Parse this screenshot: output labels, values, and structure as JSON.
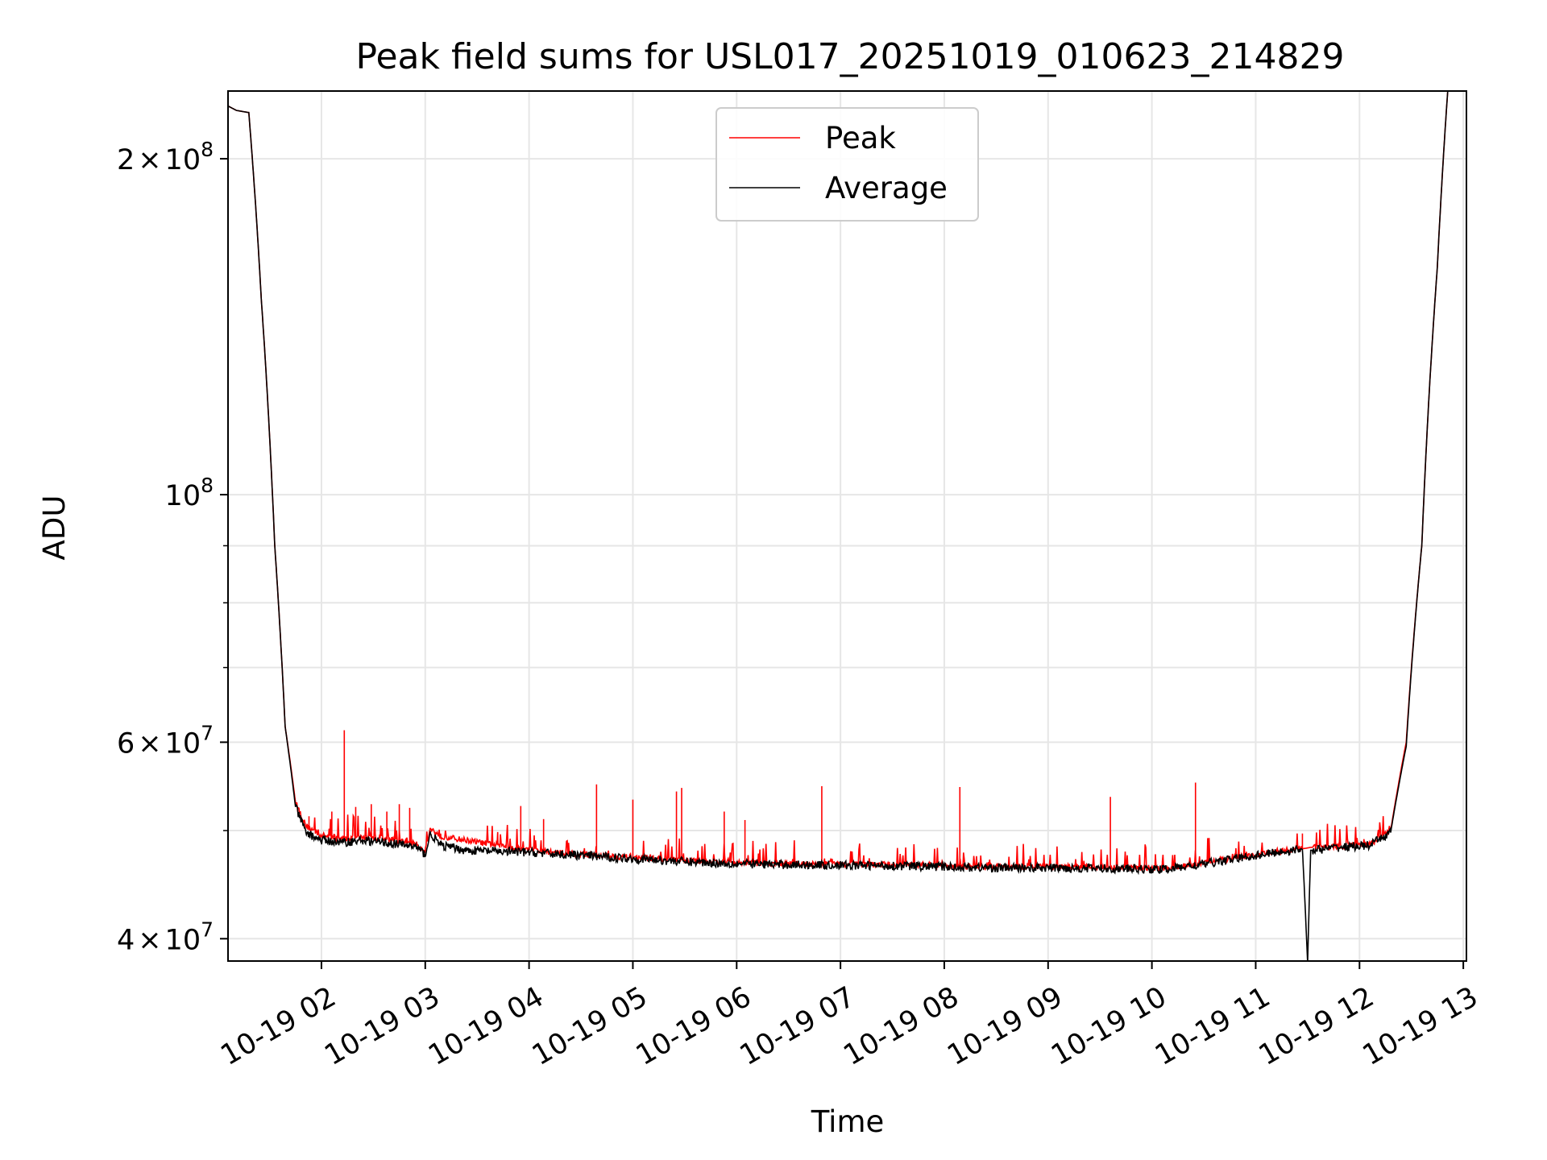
{
  "chart_data": {
    "type": "line",
    "title": "Peak field sums for USL017_20251019_010623_214829",
    "xlabel": "Time",
    "ylabel": "ADU",
    "yscale": "log",
    "xlim": [
      1.1,
      13.03
    ],
    "ylim": [
      38200000,
      230000000
    ],
    "grid": true,
    "legend_position": "upper-center",
    "x_unit": "hours since 10-19 00:00",
    "x_ticks": [
      {
        "value": 2,
        "label": "10-19 02"
      },
      {
        "value": 3,
        "label": "10-19 03"
      },
      {
        "value": 4,
        "label": "10-19 04"
      },
      {
        "value": 5,
        "label": "10-19 05"
      },
      {
        "value": 6,
        "label": "10-19 06"
      },
      {
        "value": 7,
        "label": "10-19 07"
      },
      {
        "value": 8,
        "label": "10-19 08"
      },
      {
        "value": 9,
        "label": "10-19 09"
      },
      {
        "value": 10,
        "label": "10-19 10"
      },
      {
        "value": 11,
        "label": "10-19 11"
      },
      {
        "value": 12,
        "label": "10-19 12"
      },
      {
        "value": 13,
        "label": "10-19 13"
      }
    ],
    "y_major_ticks": [
      {
        "value": 40000000,
        "mantissa": "4",
        "exponent": "7"
      },
      {
        "value": 60000000,
        "mantissa": "6",
        "exponent": "7"
      },
      {
        "value": 100000000,
        "mantissa": "",
        "exponent": "8"
      },
      {
        "value": 200000000,
        "mantissa": "2",
        "exponent": "8"
      }
    ],
    "y_minor_ticks": [
      50000000,
      70000000,
      80000000,
      90000000
    ],
    "times_sign": "×",
    "base": "10",
    "series": [
      {
        "name": "Peak",
        "color": "#ff0000",
        "baseline": [
          [
            1.1,
            223000000
          ],
          [
            1.18,
            221000000
          ],
          [
            1.3,
            220000000
          ],
          [
            1.42,
            150000000
          ],
          [
            1.55,
            90000000
          ],
          [
            1.65,
            62000000
          ],
          [
            1.75,
            53000000
          ],
          [
            1.85,
            50500000
          ],
          [
            2.0,
            49500000
          ],
          [
            2.2,
            49200000
          ],
          [
            2.4,
            49300000
          ],
          [
            2.6,
            49100000
          ],
          [
            2.9,
            48700000
          ],
          [
            3.0,
            48000000
          ],
          [
            3.05,
            50200000
          ],
          [
            3.15,
            49400000
          ],
          [
            3.4,
            49000000
          ],
          [
            3.7,
            48500000
          ],
          [
            4.0,
            48000000
          ],
          [
            4.5,
            47600000
          ],
          [
            5.0,
            47300000
          ],
          [
            5.5,
            47000000
          ],
          [
            6.0,
            46800000
          ],
          [
            6.5,
            46700000
          ],
          [
            7.0,
            46650000
          ],
          [
            7.5,
            46600000
          ],
          [
            8.0,
            46500000
          ],
          [
            8.5,
            46400000
          ],
          [
            9.0,
            46400000
          ],
          [
            9.5,
            46350000
          ],
          [
            9.8,
            46300000
          ],
          [
            10.1,
            46250000
          ],
          [
            10.4,
            46600000
          ],
          [
            10.7,
            47100000
          ],
          [
            11.0,
            47600000
          ],
          [
            11.2,
            47900000
          ],
          [
            11.48,
            48200000
          ],
          [
            11.53,
            48300000
          ],
          [
            11.8,
            48400000
          ],
          [
            12.1,
            48600000
          ],
          [
            12.3,
            50000000
          ],
          [
            12.45,
            60000000
          ],
          [
            12.6,
            90000000
          ],
          [
            12.75,
            160000000
          ],
          [
            12.85,
            230000000
          ],
          [
            13.03,
            230000000
          ]
        ],
        "spikes": [
          [
            1.88,
            51500000
          ],
          [
            2.1,
            52000000
          ],
          [
            2.22,
            61500000
          ],
          [
            2.33,
            52500000
          ],
          [
            2.48,
            52800000
          ],
          [
            2.63,
            52000000
          ],
          [
            2.75,
            52800000
          ],
          [
            2.85,
            52400000
          ],
          [
            3.92,
            52600000
          ],
          [
            4.14,
            51200000
          ],
          [
            4.65,
            55000000
          ],
          [
            5.0,
            53300000
          ],
          [
            5.42,
            54200000
          ],
          [
            5.47,
            54600000
          ],
          [
            5.88,
            52000000
          ],
          [
            6.08,
            51100000
          ],
          [
            6.82,
            54800000
          ],
          [
            8.15,
            54700000
          ],
          [
            9.6,
            53600000
          ],
          [
            10.42,
            55200000
          ],
          [
            11.45,
            49700000
          ]
        ]
      },
      {
        "name": "Average",
        "color": "#000000",
        "baseline": [
          [
            1.1,
            223000000
          ],
          [
            1.18,
            221000000
          ],
          [
            1.3,
            220000000
          ],
          [
            1.42,
            150000000
          ],
          [
            1.55,
            90000000
          ],
          [
            1.65,
            62000000
          ],
          [
            1.75,
            52500000
          ],
          [
            1.85,
            49800000
          ],
          [
            2.0,
            49000000
          ],
          [
            2.2,
            48800000
          ],
          [
            2.4,
            49000000
          ],
          [
            2.6,
            48800000
          ],
          [
            2.9,
            48400000
          ],
          [
            3.0,
            47600000
          ],
          [
            3.05,
            49700000
          ],
          [
            3.15,
            48500000
          ],
          [
            3.4,
            48000000
          ],
          [
            3.7,
            47900000
          ],
          [
            4.0,
            47800000
          ],
          [
            4.5,
            47500000
          ],
          [
            5.0,
            47200000
          ],
          [
            5.5,
            46900000
          ],
          [
            6.0,
            46700000
          ],
          [
            6.5,
            46600000
          ],
          [
            7.0,
            46550000
          ],
          [
            7.5,
            46500000
          ],
          [
            8.0,
            46400000
          ],
          [
            8.5,
            46300000
          ],
          [
            9.0,
            46300000
          ],
          [
            9.5,
            46250000
          ],
          [
            9.8,
            46200000
          ],
          [
            10.1,
            46150000
          ],
          [
            10.4,
            46500000
          ],
          [
            10.7,
            47000000
          ],
          [
            11.0,
            47500000
          ],
          [
            11.2,
            47800000
          ],
          [
            11.45,
            48100000
          ],
          [
            11.5,
            38000000
          ],
          [
            11.53,
            48000000
          ],
          [
            11.8,
            48300000
          ],
          [
            12.1,
            48500000
          ],
          [
            12.3,
            49800000
          ],
          [
            12.45,
            59500000
          ],
          [
            12.6,
            90000000
          ],
          [
            12.75,
            160000000
          ],
          [
            12.85,
            230000000
          ],
          [
            13.03,
            230000000
          ]
        ]
      }
    ]
  }
}
